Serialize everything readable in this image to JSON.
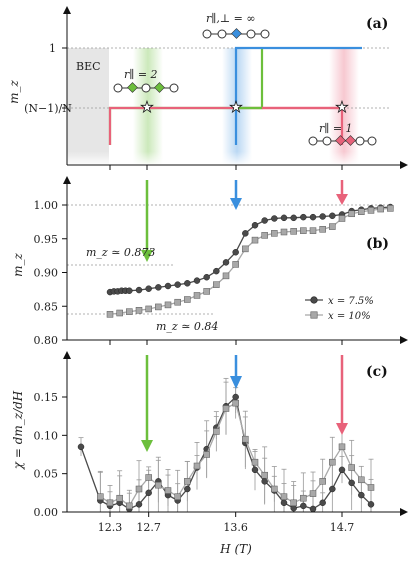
{
  "colors": {
    "green": "#6cbf3c",
    "blue": "#3a8fde",
    "red": "#e8627a",
    "dark": "#4a4a4a",
    "grey": "#a8a8a8",
    "bec": "#e6e6e6"
  },
  "xaxis": {
    "label": "H (T)",
    "ticks": [
      "12.3",
      "12.7",
      "13.6",
      "14.7"
    ],
    "range": [
      11.9,
      15.5
    ]
  },
  "panel_a": {
    "label": "(a)",
    "ylabel": "m_z",
    "yticks": [
      "1",
      "(N−1)/N"
    ],
    "bec": "BEC",
    "ann_inf": "r∥,⊥ = ∞",
    "ann_two": "r∥ = 2",
    "ann_one": "r∥ = 1"
  },
  "panel_b": {
    "label": "(b)",
    "ylabel": "m_z",
    "yticks": [
      "0.80",
      "0.85",
      "0.90",
      "0.95",
      "1.00"
    ],
    "ann_873": "m_z ≃ 0.873",
    "ann_84": "m_z ≃ 0.84",
    "legend": [
      "x = 7.5%",
      "x = 10%"
    ]
  },
  "panel_c": {
    "label": "(c)",
    "ylabel": "χ = dm_z/dH",
    "yticks": [
      "0.00",
      "0.05",
      "0.10",
      "0.15"
    ]
  },
  "chart_data": [
    {
      "type": "line",
      "title": "",
      "xlabel": "H (T)",
      "ylabel": "m_z",
      "series": [
        {
          "name": "r∥ = 2",
          "x": [
            12.3,
            12.3,
            13.6,
            13.9,
            13.9,
            15.1
          ],
          "y": [
            "(N−1)/N-down",
            "(N−1)/N",
            "(N−1)/N",
            "(N−1)/N",
            "1",
            "1"
          ]
        },
        {
          "name": "r∥,⊥ = ∞",
          "x": [
            13.6,
            13.6,
            15.1
          ],
          "y": [
            "below",
            "1",
            "1"
          ]
        },
        {
          "name": "r∥ = 1",
          "x": [
            12.3,
            12.3,
            14.7,
            14.7
          ],
          "y": [
            "below",
            "(N−1)/N",
            "(N−1)/N",
            "below"
          ]
        }
      ]
    },
    {
      "type": "line",
      "xlabel": "H (T)",
      "ylabel": "m_z",
      "ylim": [
        0.8,
        1.02
      ],
      "series": [
        {
          "name": "x = 7.5%",
          "x": [
            12.3,
            12.34,
            12.38,
            12.42,
            12.46,
            12.5,
            12.6,
            12.7,
            12.8,
            12.9,
            13.0,
            13.1,
            13.2,
            13.3,
            13.4,
            13.5,
            13.6,
            13.7,
            13.8,
            13.9,
            14.0,
            14.1,
            14.2,
            14.3,
            14.4,
            14.5,
            14.6,
            14.7,
            14.8,
            14.9,
            15.0,
            15.1,
            15.2
          ],
          "values": [
            0.871,
            0.872,
            0.872,
            0.873,
            0.873,
            0.873,
            0.874,
            0.876,
            0.878,
            0.88,
            0.882,
            0.884,
            0.888,
            0.893,
            0.902,
            0.915,
            0.93,
            0.958,
            0.97,
            0.977,
            0.98,
            0.981,
            0.981,
            0.982,
            0.982,
            0.983,
            0.984,
            0.986,
            0.991,
            0.993,
            0.995,
            0.996,
            0.997
          ]
        },
        {
          "name": "x = 10%",
          "x": [
            12.3,
            12.4,
            12.5,
            12.6,
            12.7,
            12.8,
            12.9,
            13.0,
            13.1,
            13.2,
            13.3,
            13.4,
            13.5,
            13.6,
            13.7,
            13.8,
            13.9,
            14.0,
            14.1,
            14.2,
            14.3,
            14.4,
            14.5,
            14.6,
            14.7,
            14.8,
            14.9,
            15.0,
            15.1,
            15.2
          ],
          "values": [
            0.838,
            0.84,
            0.842,
            0.844,
            0.846,
            0.849,
            0.852,
            0.856,
            0.86,
            0.866,
            0.872,
            0.882,
            0.895,
            0.912,
            0.935,
            0.948,
            0.955,
            0.958,
            0.96,
            0.961,
            0.962,
            0.962,
            0.964,
            0.968,
            0.98,
            0.987,
            0.99,
            0.992,
            0.994,
            0.995
          ]
        }
      ]
    },
    {
      "type": "line",
      "xlabel": "H (T)",
      "ylabel": "χ = dm_z/dH",
      "ylim": [
        0,
        0.18
      ],
      "series": [
        {
          "name": "x = 7.5%",
          "x": [
            12.0,
            12.2,
            12.3,
            12.4,
            12.5,
            12.6,
            12.7,
            12.8,
            12.9,
            13.0,
            13.1,
            13.2,
            13.3,
            13.4,
            13.5,
            13.6,
            13.7,
            13.8,
            13.9,
            14.0,
            14.1,
            14.2,
            14.3,
            14.4,
            14.5,
            14.6,
            14.7,
            14.8,
            14.9,
            15.0
          ],
          "values": [
            0.085,
            0.015,
            0.008,
            0.012,
            0.004,
            0.01,
            0.025,
            0.04,
            0.022,
            0.015,
            0.03,
            0.058,
            0.082,
            0.11,
            0.138,
            0.15,
            0.09,
            0.055,
            0.04,
            0.028,
            0.012,
            0.005,
            0.008,
            0.004,
            0.012,
            0.03,
            0.055,
            0.038,
            0.022,
            0.01
          ]
        },
        {
          "name": "x = 10%",
          "x": [
            12.2,
            12.3,
            12.4,
            12.5,
            12.6,
            12.7,
            12.8,
            12.9,
            13.0,
            13.1,
            13.2,
            13.3,
            13.4,
            13.5,
            13.6,
            13.7,
            13.8,
            13.9,
            14.0,
            14.1,
            14.2,
            14.3,
            14.4,
            14.5,
            14.6,
            14.7,
            14.8,
            14.9,
            15.0
          ],
          "values": [
            0.02,
            0.012,
            0.018,
            0.008,
            0.03,
            0.045,
            0.035,
            0.028,
            0.02,
            0.04,
            0.06,
            0.075,
            0.105,
            0.135,
            0.142,
            0.095,
            0.065,
            0.048,
            0.03,
            0.02,
            0.012,
            0.018,
            0.024,
            0.04,
            0.065,
            0.085,
            0.058,
            0.042,
            0.032
          ]
        }
      ]
    }
  ]
}
